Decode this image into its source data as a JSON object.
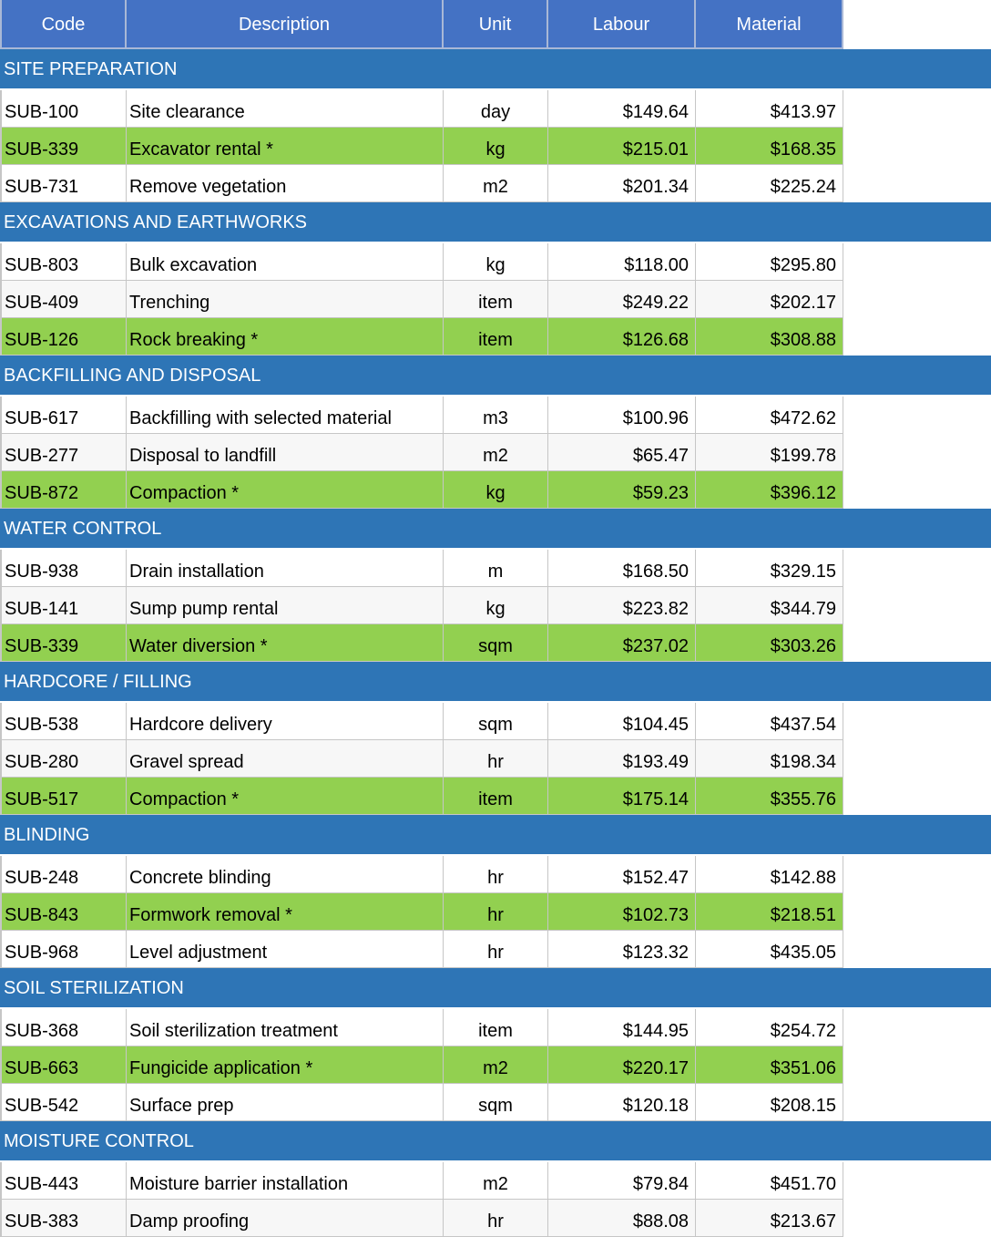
{
  "columns": {
    "code": "Code",
    "description": "Description",
    "unit": "Unit",
    "labour": "Labour",
    "material": "Material"
  },
  "colors": {
    "header": "#4472c4",
    "section": "#2e75b6",
    "highlight": "#92d050",
    "alt_row": "#f7f7f7"
  },
  "sections": [
    {
      "title": "SITE PREPARATION",
      "rows": [
        {
          "code": "SUB-100",
          "description": "Site clearance",
          "unit": "day",
          "labour": "$149.64",
          "material": "$413.97",
          "highlight": false
        },
        {
          "code": "SUB-339",
          "description": "Excavator rental *",
          "unit": "kg",
          "labour": "$215.01",
          "material": "$168.35",
          "highlight": true
        },
        {
          "code": "SUB-731",
          "description": "Remove vegetation",
          "unit": "m2",
          "labour": "$201.34",
          "material": "$225.24",
          "highlight": false
        }
      ]
    },
    {
      "title": "EXCAVATIONS AND EARTHWORKS",
      "rows": [
        {
          "code": "SUB-803",
          "description": "Bulk excavation",
          "unit": "kg",
          "labour": "$118.00",
          "material": "$295.80",
          "highlight": false
        },
        {
          "code": "SUB-409",
          "description": "Trenching",
          "unit": "item",
          "labour": "$249.22",
          "material": "$202.17",
          "highlight": false
        },
        {
          "code": "SUB-126",
          "description": "Rock breaking *",
          "unit": "item",
          "labour": "$126.68",
          "material": "$308.88",
          "highlight": true
        }
      ]
    },
    {
      "title": "BACKFILLING AND DISPOSAL",
      "rows": [
        {
          "code": "SUB-617",
          "description": "Backfilling with selected material",
          "unit": "m3",
          "labour": "$100.96",
          "material": "$472.62",
          "highlight": false
        },
        {
          "code": "SUB-277",
          "description": "Disposal to landfill",
          "unit": "m2",
          "labour": "$65.47",
          "material": "$199.78",
          "highlight": false
        },
        {
          "code": "SUB-872",
          "description": "Compaction *",
          "unit": "kg",
          "labour": "$59.23",
          "material": "$396.12",
          "highlight": true
        }
      ]
    },
    {
      "title": "WATER CONTROL",
      "rows": [
        {
          "code": "SUB-938",
          "description": "Drain installation",
          "unit": "m",
          "labour": "$168.50",
          "material": "$329.15",
          "highlight": false
        },
        {
          "code": "SUB-141",
          "description": "Sump pump rental",
          "unit": "kg",
          "labour": "$223.82",
          "material": "$344.79",
          "highlight": false
        },
        {
          "code": "SUB-339",
          "description": "Water diversion *",
          "unit": "sqm",
          "labour": "$237.02",
          "material": "$303.26",
          "highlight": true
        }
      ]
    },
    {
      "title": "HARDCORE / FILLING",
      "rows": [
        {
          "code": "SUB-538",
          "description": "Hardcore delivery",
          "unit": "sqm",
          "labour": "$104.45",
          "material": "$437.54",
          "highlight": false
        },
        {
          "code": "SUB-280",
          "description": "Gravel spread",
          "unit": "hr",
          "labour": "$193.49",
          "material": "$198.34",
          "highlight": false
        },
        {
          "code": "SUB-517",
          "description": "Compaction *",
          "unit": "item",
          "labour": "$175.14",
          "material": "$355.76",
          "highlight": true
        }
      ]
    },
    {
      "title": "BLINDING",
      "rows": [
        {
          "code": "SUB-248",
          "description": "Concrete blinding",
          "unit": "hr",
          "labour": "$152.47",
          "material": "$142.88",
          "highlight": false
        },
        {
          "code": "SUB-843",
          "description": "Formwork removal *",
          "unit": "hr",
          "labour": "$102.73",
          "material": "$218.51",
          "highlight": true
        },
        {
          "code": "SUB-968",
          "description": "Level adjustment",
          "unit": "hr",
          "labour": "$123.32",
          "material": "$435.05",
          "highlight": false
        }
      ]
    },
    {
      "title": "SOIL STERILIZATION",
      "rows": [
        {
          "code": "SUB-368",
          "description": "Soil sterilization treatment",
          "unit": "item",
          "labour": "$144.95",
          "material": "$254.72",
          "highlight": false
        },
        {
          "code": "SUB-663",
          "description": "Fungicide application *",
          "unit": "m2",
          "labour": "$220.17",
          "material": "$351.06",
          "highlight": true
        },
        {
          "code": "SUB-542",
          "description": "Surface prep",
          "unit": "sqm",
          "labour": "$120.18",
          "material": "$208.15",
          "highlight": false
        }
      ]
    },
    {
      "title": "MOISTURE CONTROL",
      "rows": [
        {
          "code": "SUB-443",
          "description": "Moisture barrier installation",
          "unit": "m2",
          "labour": "$79.84",
          "material": "$451.70",
          "highlight": false
        },
        {
          "code": "SUB-383",
          "description": "Damp proofing",
          "unit": "hr",
          "labour": "$88.08",
          "material": "$213.67",
          "highlight": false
        }
      ]
    }
  ]
}
